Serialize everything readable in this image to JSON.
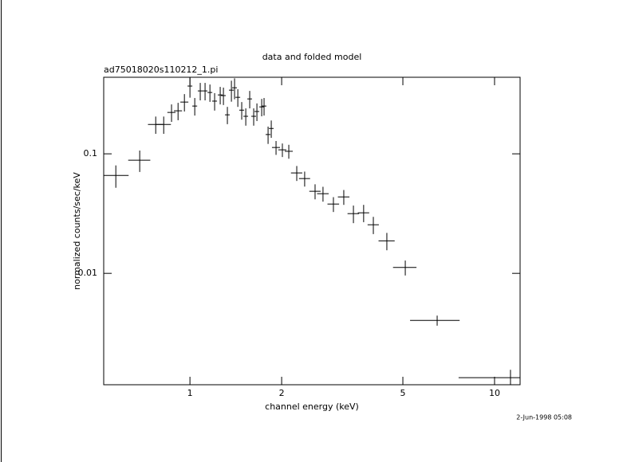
{
  "chart_data": {
    "type": "errorbar",
    "title": "data and folded model",
    "subtitle": "ad75018020s110212_1.pi",
    "xlabel": "channel energy (keV)",
    "ylabel": "normalized counts/sec/keV",
    "footer": "2-Jun-1998 05:08",
    "xscale": "log",
    "yscale": "log",
    "color": "#000000",
    "xlim": [
      0.521,
      12.13
    ],
    "ylim": [
      0.00117,
      0.437
    ],
    "xticks": [
      1,
      2,
      5,
      10
    ],
    "yticks": [
      0.01,
      0.1
    ],
    "x": [
      0.571,
      0.684,
      0.772,
      0.82,
      0.87,
      0.914,
      0.959,
      1.0,
      1.037,
      1.081,
      1.121,
      1.163,
      1.205,
      1.257,
      1.288,
      1.327,
      1.368,
      1.401,
      1.436,
      1.479,
      1.525,
      1.571,
      1.619,
      1.659,
      1.72,
      1.751,
      1.805,
      1.849,
      1.917,
      2.011,
      2.111,
      2.242,
      2.38,
      2.575,
      2.734,
      2.958,
      3.199,
      3.441,
      3.717,
      4.0,
      4.43,
      5.092,
      6.48,
      11.28
    ],
    "xerr": [
      0.058,
      0.057,
      0.044,
      0.046,
      0.027,
      0.028,
      0.029,
      0.018,
      0.019,
      0.02,
      0.02,
      0.021,
      0.022,
      0.023,
      0.023,
      0.024,
      0.025,
      0.025,
      0.026,
      0.027,
      0.027,
      0.028,
      0.029,
      0.03,
      0.031,
      0.031,
      0.033,
      0.033,
      0.058,
      0.061,
      0.064,
      0.096,
      0.1,
      0.11,
      0.12,
      0.13,
      0.14,
      0.15,
      0.16,
      0.17,
      0.27,
      0.45,
      1.2,
      3.66
    ],
    "values": [
      0.066,
      0.0885,
      0.176,
      0.176,
      0.222,
      0.229,
      0.271,
      0.369,
      0.251,
      0.336,
      0.336,
      0.326,
      0.276,
      0.311,
      0.307,
      0.212,
      0.341,
      0.357,
      0.297,
      0.232,
      0.206,
      0.288,
      0.206,
      0.226,
      0.247,
      0.251,
      0.145,
      0.163,
      0.113,
      0.108,
      0.105,
      0.0692,
      0.0621,
      0.0486,
      0.0464,
      0.038,
      0.0436,
      0.0316,
      0.0321,
      0.0255,
      0.0187,
      0.0112,
      0.00404,
      0.00134
    ],
    "yerr": [
      0.014,
      0.018,
      0.029,
      0.029,
      0.037,
      0.038,
      0.045,
      0.074,
      0.042,
      0.056,
      0.056,
      0.054,
      0.046,
      0.052,
      0.051,
      0.035,
      0.068,
      0.071,
      0.05,
      0.039,
      0.034,
      0.048,
      0.034,
      0.038,
      0.041,
      0.042,
      0.024,
      0.027,
      0.015,
      0.014,
      0.014,
      0.0099,
      0.0089,
      0.007,
      0.0066,
      0.0054,
      0.0062,
      0.0053,
      0.0053,
      0.0042,
      0.0031,
      0.0016,
      0.00039,
      0.00022
    ]
  }
}
